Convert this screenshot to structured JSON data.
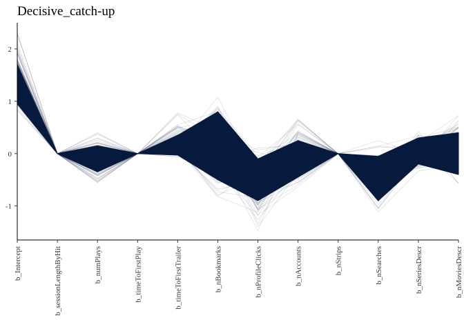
{
  "chart_data": {
    "type": "line",
    "title": "Decisive_catch-up",
    "subtitle": "",
    "xlabel": "",
    "ylabel": "",
    "categories": [
      "b_Intercept",
      "b_sessionLengthByHit",
      "b_numPlays",
      "b_timeToFirstPlay",
      "b_timeToFirstTrailer",
      "b_nBookmarks",
      "b_nProfileClicks",
      "b_nAccounts",
      "b_nStrips",
      "b_nSearches",
      "b_nSeriesDescr",
      "b_nMoviesDescr"
    ],
    "yticks": [
      "-1",
      "0",
      "1",
      "2"
    ],
    "ylim": [
      -1.65,
      2.5
    ],
    "grid": false,
    "legend": "none",
    "line_color": "#0d1b3e",
    "fill_color": "#051a3d",
    "band": {
      "core_upper": [
        1.7,
        0,
        0.15,
        0,
        0.35,
        0.8,
        -0.1,
        0.25,
        0,
        -0.05,
        0.3,
        0.4
      ],
      "core_lower": [
        0.95,
        0,
        -0.35,
        0,
        -0.03,
        -0.5,
        -0.9,
        -0.45,
        0,
        -0.9,
        -0.2,
        -0.4
      ],
      "max_extent": [
        2.3,
        0,
        0.4,
        0,
        0.78,
        1.2,
        0.2,
        0.65,
        0,
        0.25,
        0.45,
        0.8
      ],
      "min_extent": [
        0.78,
        0,
        -0.55,
        0,
        -0.06,
        -0.82,
        -1.47,
        -0.72,
        0,
        -1.15,
        -0.33,
        -0.57
      ]
    }
  }
}
